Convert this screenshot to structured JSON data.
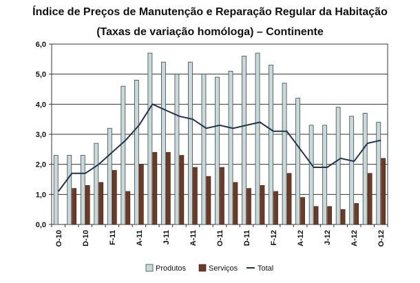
{
  "title": "Índice de Preços de Manutenção e Reparação Regular da Habitação",
  "subtitle": "(Taxas de variação homóloga) – Continente",
  "chart_data": {
    "type": "bar",
    "ylim": [
      0,
      6
    ],
    "yticks": [
      "0,0",
      "1,0",
      "2,0",
      "3,0",
      "4,0",
      "5,0",
      "6,0"
    ],
    "grid": true,
    "legend_position": "bottom",
    "xtick_labels": [
      {
        "index": 0,
        "label": "O-10"
      },
      {
        "index": 2,
        "label": "D-10"
      },
      {
        "index": 4,
        "label": "F-11"
      },
      {
        "index": 6,
        "label": "A-11"
      },
      {
        "index": 8,
        "label": "J-11"
      },
      {
        "index": 10,
        "label": "A-11"
      },
      {
        "index": 12,
        "label": "O-11"
      },
      {
        "index": 14,
        "label": "D-11"
      },
      {
        "index": 16,
        "label": "F-12"
      },
      {
        "index": 18,
        "label": "A-12"
      },
      {
        "index": 20,
        "label": "J-12"
      },
      {
        "index": 22,
        "label": "A-12"
      },
      {
        "index": 24,
        "label": "O-12"
      }
    ],
    "series": [
      {
        "name": "Produtos",
        "kind": "bar",
        "color": "#c9d8d8",
        "values": [
          2.3,
          2.3,
          2.3,
          2.7,
          3.2,
          4.6,
          4.8,
          5.7,
          5.4,
          5.0,
          5.4,
          5.0,
          4.9,
          5.1,
          5.6,
          5.7,
          5.3,
          4.7,
          4.2,
          3.3,
          3.3,
          3.9,
          3.6,
          3.7,
          3.4
        ]
      },
      {
        "name": "Serviços",
        "kind": "bar",
        "color": "#6e3a26",
        "values": [
          null,
          1.2,
          1.3,
          1.4,
          1.8,
          1.1,
          2.0,
          2.4,
          2.4,
          2.3,
          1.9,
          1.6,
          1.9,
          1.4,
          1.2,
          1.3,
          1.1,
          1.7,
          0.9,
          0.6,
          0.6,
          0.5,
          0.7,
          1.7,
          2.2
        ]
      },
      {
        "name": "Total",
        "kind": "line",
        "color": "#1f3350",
        "values": [
          1.1,
          1.7,
          1.7,
          2.0,
          2.4,
          2.8,
          3.3,
          4.0,
          3.8,
          3.6,
          3.5,
          3.2,
          3.3,
          3.2,
          3.3,
          3.4,
          3.1,
          3.1,
          2.5,
          1.9,
          1.9,
          2.2,
          2.1,
          2.7,
          2.8
        ]
      }
    ]
  }
}
